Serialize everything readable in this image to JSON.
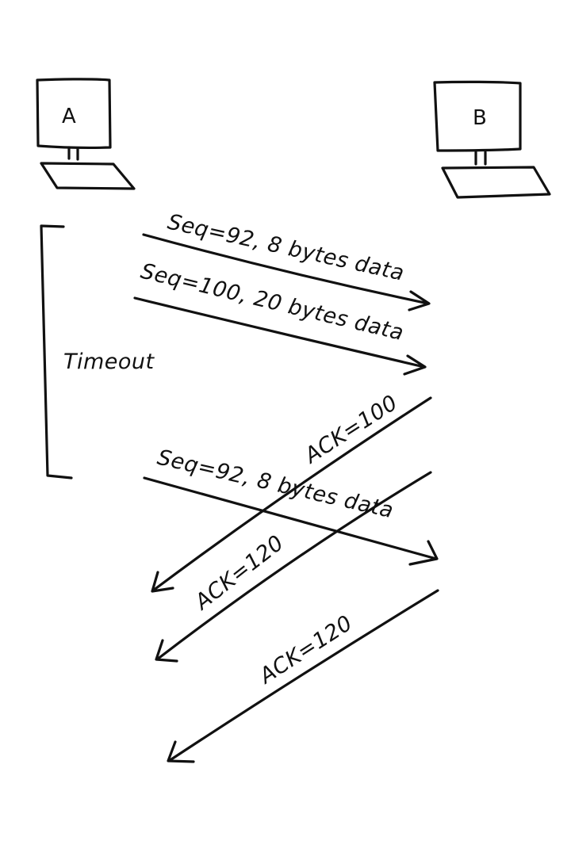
{
  "hosts": {
    "a": {
      "label": "A"
    },
    "b": {
      "label": "B"
    }
  },
  "timer": {
    "label": "Timeout"
  },
  "messages": [
    {
      "direction": "A-to-B",
      "label": "Seq=92, 8 bytes data"
    },
    {
      "direction": "A-to-B",
      "label": "Seq=100, 20 bytes data"
    },
    {
      "direction": "B-to-A",
      "label": "ACK=100"
    },
    {
      "direction": "A-to-B",
      "label": "Seq=92, 8 bytes data"
    },
    {
      "direction": "B-to-A",
      "label": "ACK=120"
    },
    {
      "direction": "B-to-A",
      "label": "ACK=120"
    }
  ]
}
